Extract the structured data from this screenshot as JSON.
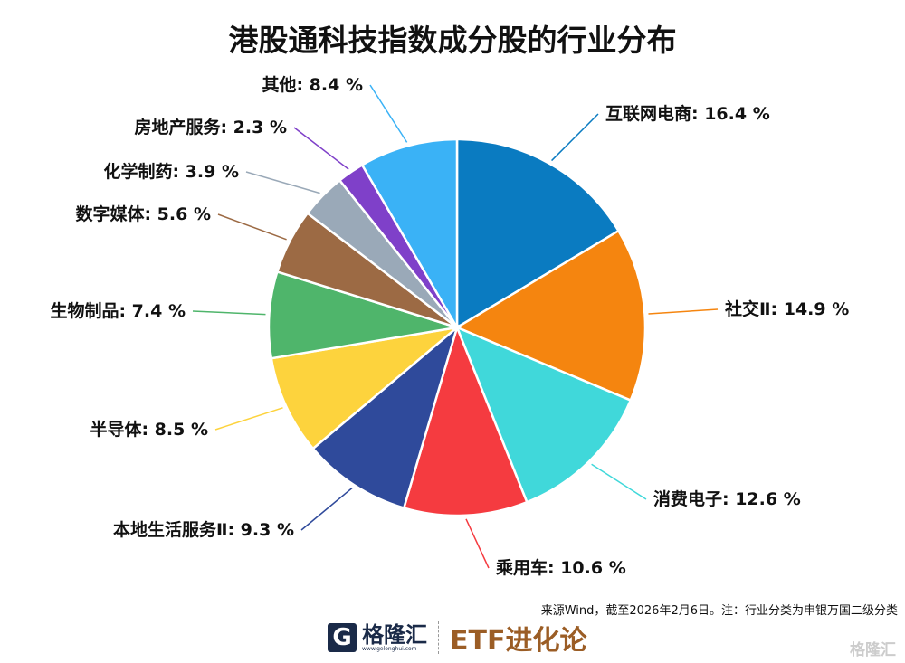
{
  "chart_data": {
    "type": "pie",
    "title": "港股通科技指数成分股的行业分布",
    "start": "12 o'clock, clockwise",
    "unit": "%",
    "slices": [
      {
        "label": "互联网电商",
        "value": 16.4,
        "color": "#0a7bc1"
      },
      {
        "label": "社交Ⅱ",
        "value": 14.9,
        "color": "#f5850f"
      },
      {
        "label": "消费电子",
        "value": 12.6,
        "color": "#40d8da"
      },
      {
        "label": "乘用车",
        "value": 10.6,
        "color": "#f53b40"
      },
      {
        "label": "本地生活服务Ⅱ",
        "value": 9.3,
        "color": "#2f4a9b"
      },
      {
        "label": "半导体",
        "value": 8.5,
        "color": "#fdd33d"
      },
      {
        "label": "生物制品",
        "value": 7.4,
        "color": "#4fb56b"
      },
      {
        "label": "数字媒体",
        "value": 5.6,
        "color": "#9c6a44"
      },
      {
        "label": "化学制药",
        "value": 3.9,
        "color": "#9aa9b8"
      },
      {
        "label": "房地产服务",
        "value": 2.3,
        "color": "#7f40c9"
      },
      {
        "label": "其他",
        "value": 8.4,
        "color": "#3ab2f6"
      }
    ]
  },
  "footer": {
    "source": "来源Wind，截至2026年2月6日。注：行业分类为申银万国二级分类",
    "logo_name": "格隆汇",
    "logo_url": "www.gelonghui.com",
    "column": "ETF进化论",
    "watermark": "格隆汇"
  }
}
